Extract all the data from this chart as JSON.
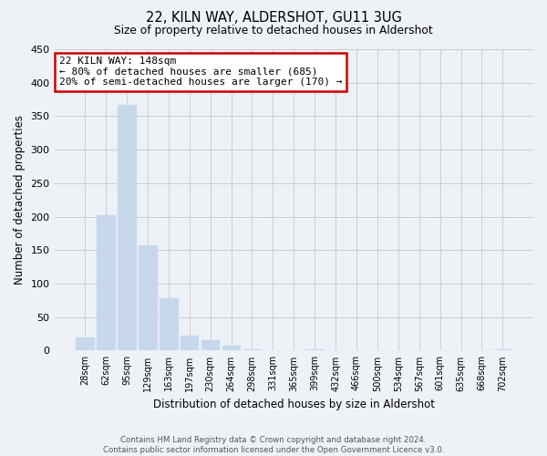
{
  "title1": "22, KILN WAY, ALDERSHOT, GU11 3UG",
  "title2": "Size of property relative to detached houses in Aldershot",
  "xlabel": "Distribution of detached houses by size in Aldershot",
  "ylabel": "Number of detached properties",
  "bar_labels": [
    "28sqm",
    "62sqm",
    "95sqm",
    "129sqm",
    "163sqm",
    "197sqm",
    "230sqm",
    "264sqm",
    "298sqm",
    "331sqm",
    "365sqm",
    "399sqm",
    "432sqm",
    "466sqm",
    "500sqm",
    "534sqm",
    "567sqm",
    "601sqm",
    "635sqm",
    "668sqm",
    "702sqm"
  ],
  "bar_values": [
    20,
    202,
    367,
    157,
    78,
    23,
    15,
    8,
    2,
    0,
    0,
    2,
    0,
    0,
    0,
    0,
    0,
    0,
    0,
    0,
    2
  ],
  "bar_color": "#c8d8ec",
  "annotation_box_text": "22 KILN WAY: 148sqm\n← 80% of detached houses are smaller (685)\n20% of semi-detached houses are larger (170) →",
  "annotation_box_color": "#ffffff",
  "annotation_box_edge_color": "#cc0000",
  "footer1": "Contains HM Land Registry data © Crown copyright and database right 2024.",
  "footer2": "Contains public sector information licensed under the Open Government Licence v3.0.",
  "ylim": [
    0,
    450
  ],
  "yticks": [
    0,
    50,
    100,
    150,
    200,
    250,
    300,
    350,
    400,
    450
  ],
  "grid_color": "#cccccc",
  "bg_color": "#eef2f7"
}
